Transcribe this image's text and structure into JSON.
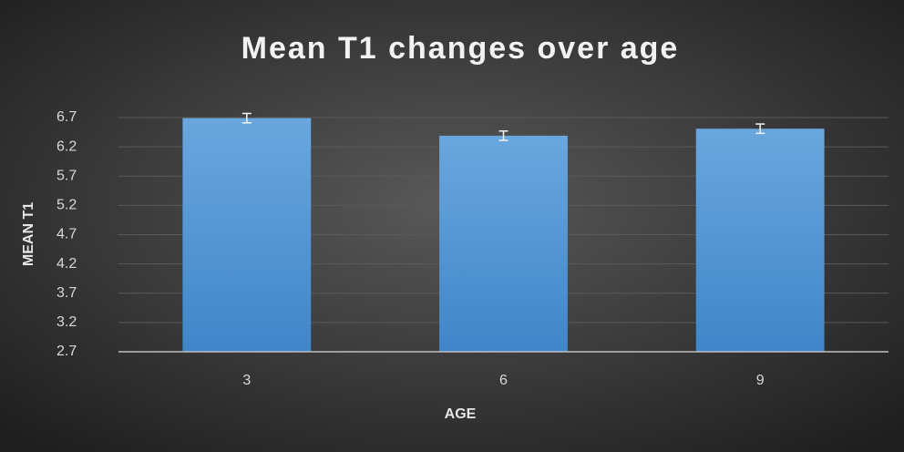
{
  "chart_data": {
    "type": "bar",
    "title": "Mean T1 changes over age",
    "x_label": "AGE",
    "y_label": "MEAN T1",
    "categories": [
      "3",
      "6",
      "9"
    ],
    "values": [
      6.69,
      6.39,
      6.51
    ],
    "errors": [
      0.08,
      0.08,
      0.08
    ],
    "color": "#5b9bd5",
    "ylim": [
      2.7,
      7.2
    ],
    "yticks": [
      2.7,
      3.2,
      3.7,
      4.2,
      4.7,
      5.2,
      5.7,
      6.2,
      6.7
    ],
    "grid": true
  }
}
